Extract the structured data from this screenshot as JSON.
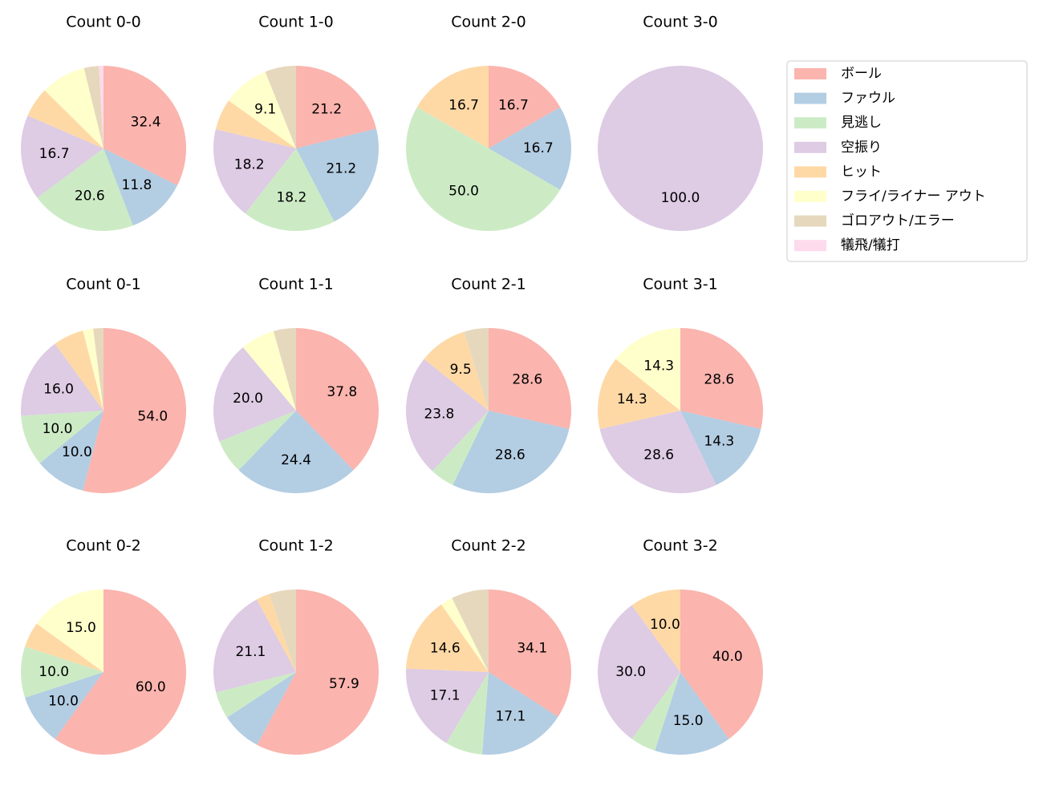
{
  "legend": {
    "labels": [
      "ボール",
      "ファウル",
      "見逃し",
      "空振り",
      "ヒット",
      "フライ/ライナー アウト",
      "ゴロアウト/エラー",
      "犠飛/犠打"
    ],
    "colors": [
      "#fbb4ae",
      "#b3cde3",
      "#ccebc5",
      "#decbe4",
      "#fed9a6",
      "#ffffcc",
      "#e5d8bd",
      "#fddaec"
    ]
  },
  "chart_data": [
    {
      "type": "pie",
      "title": "Count 0-0",
      "values": [
        32.4,
        11.8,
        20.6,
        16.7,
        5.9,
        8.8,
        2.9,
        0.9
      ],
      "value_labels": [
        "32.4",
        "11.8",
        "20.6",
        "16.7",
        null,
        null,
        null,
        null
      ]
    },
    {
      "type": "pie",
      "title": "Count 1-0",
      "values": [
        21.2,
        21.2,
        18.2,
        18.2,
        6.1,
        9.1,
        6.1,
        0
      ],
      "value_labels": [
        "21.2",
        "21.2",
        "18.2",
        "18.2",
        null,
        "9.1",
        null,
        null
      ]
    },
    {
      "type": "pie",
      "title": "Count 2-0",
      "values": [
        16.7,
        16.7,
        50.0,
        0,
        16.7,
        0,
        0,
        0
      ],
      "value_labels": [
        "16.7",
        "16.7",
        "50.0",
        null,
        "16.7",
        null,
        null,
        null
      ]
    },
    {
      "type": "pie",
      "title": "Count 3-0",
      "values": [
        0,
        0,
        0,
        100,
        0,
        0,
        0,
        0
      ],
      "value_labels": [
        null,
        null,
        null,
        "100.0",
        null,
        null,
        null,
        null
      ]
    },
    {
      "type": "pie",
      "title": "Count 0-1",
      "values": [
        54.0,
        10.0,
        10.0,
        16.0,
        6.0,
        2.0,
        2.0,
        0
      ],
      "value_labels": [
        "54.0",
        "10.0",
        "10.0",
        "16.0",
        null,
        null,
        null,
        null
      ]
    },
    {
      "type": "pie",
      "title": "Count 1-1",
      "values": [
        37.8,
        24.4,
        6.7,
        20.0,
        0,
        6.7,
        4.4,
        0
      ],
      "value_labels": [
        "37.8",
        "24.4",
        null,
        "20.0",
        null,
        null,
        null,
        null
      ]
    },
    {
      "type": "pie",
      "title": "Count 2-1",
      "values": [
        28.6,
        28.6,
        4.8,
        23.8,
        9.5,
        0,
        4.8,
        0
      ],
      "value_labels": [
        "28.6",
        "28.6",
        null,
        "23.8",
        "9.5",
        null,
        null,
        null
      ]
    },
    {
      "type": "pie",
      "title": "Count 3-1",
      "values": [
        28.6,
        14.3,
        0,
        28.6,
        14.3,
        14.3,
        0,
        0
      ],
      "value_labels": [
        "28.6",
        "14.3",
        null,
        "28.6",
        "14.3",
        "14.3",
        null,
        null
      ]
    },
    {
      "type": "pie",
      "title": "Count 0-2",
      "values": [
        60.0,
        10.0,
        10.0,
        0,
        5.0,
        15.0,
        0,
        0
      ],
      "value_labels": [
        "60.0",
        "10.0",
        "10.0",
        null,
        null,
        "15.0",
        null,
        null
      ]
    },
    {
      "type": "pie",
      "title": "Count 1-2",
      "values": [
        57.9,
        7.9,
        5.3,
        21.1,
        2.6,
        0,
        5.3,
        0
      ],
      "value_labels": [
        "57.9",
        null,
        null,
        "21.1",
        null,
        null,
        null,
        null
      ]
    },
    {
      "type": "pie",
      "title": "Count 2-2",
      "values": [
        34.1,
        17.1,
        7.3,
        17.1,
        14.6,
        2.4,
        7.3,
        0
      ],
      "value_labels": [
        "34.1",
        "17.1",
        null,
        "17.1",
        "14.6",
        null,
        null,
        null
      ]
    },
    {
      "type": "pie",
      "title": "Count 3-2",
      "values": [
        40.0,
        15.0,
        5.0,
        30.0,
        10.0,
        0,
        0,
        0
      ],
      "value_labels": [
        "40.0",
        "15.0",
        null,
        "30.0",
        "10.0",
        null,
        null,
        null
      ]
    }
  ]
}
